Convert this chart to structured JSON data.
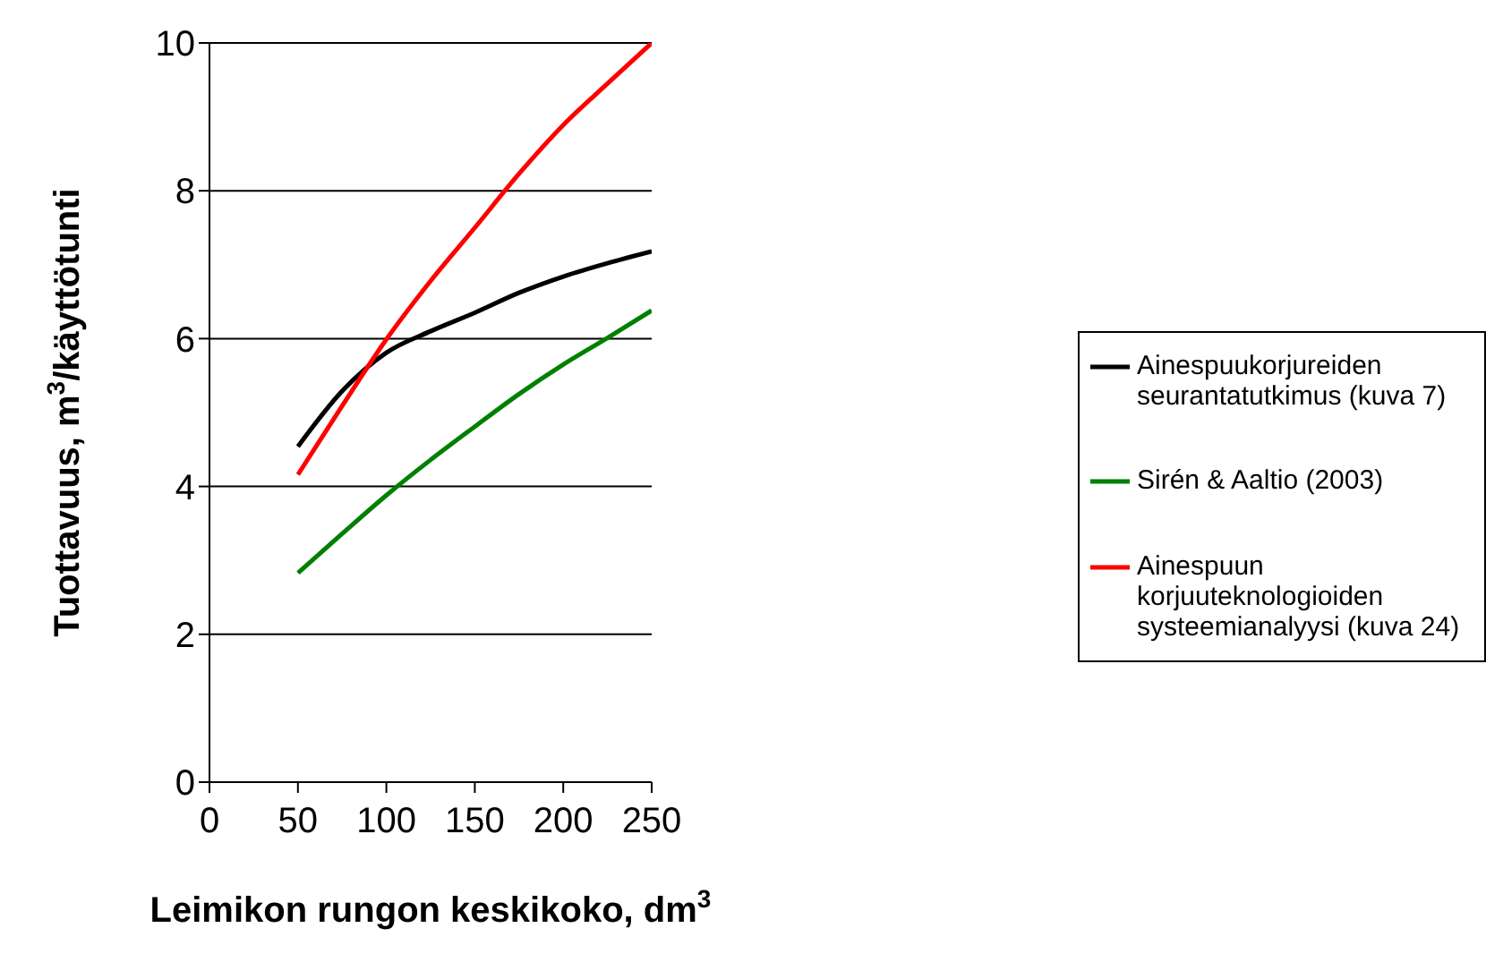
{
  "chart_data": {
    "type": "line",
    "xlabel": "Leimikon rungon keskikoko, dm$^{3}$",
    "ylabel": "Tuottavuus, m$^{3}$/käyttötunti",
    "x": [
      50,
      75,
      100,
      125,
      150,
      175,
      200,
      225,
      250
    ],
    "series": [
      {
        "name": "Ainespuukorjureiden seurantatutkimus (kuva 7)",
        "color": "#000000",
        "values": [
          4.54,
          5.29,
          5.81,
          6.1,
          6.35,
          6.62,
          6.84,
          7.02,
          7.18
        ]
      },
      {
        "name": "Sirén & Aaltio (2003)",
        "color": "#008000",
        "values": [
          2.83,
          3.36,
          3.88,
          4.36,
          4.81,
          5.25,
          5.65,
          6.01,
          6.38
        ]
      },
      {
        "name": "Ainespuun korjuuteknologioiden systeemianalyysi (kuva 24)",
        "color": "#ff0000",
        "values": [
          4.16,
          5.09,
          5.99,
          6.78,
          7.5,
          8.23,
          8.89,
          9.45,
          10
        ]
      }
    ],
    "xlim": [
      0,
      250
    ],
    "xticks": [
      0,
      50,
      100,
      150,
      200,
      250
    ],
    "ylim": [
      0,
      10
    ],
    "yticks": [
      0,
      2,
      4,
      6,
      8,
      10
    ],
    "grid": "y",
    "legend": "right",
    "marker": "none",
    "line_style": "solid"
  }
}
